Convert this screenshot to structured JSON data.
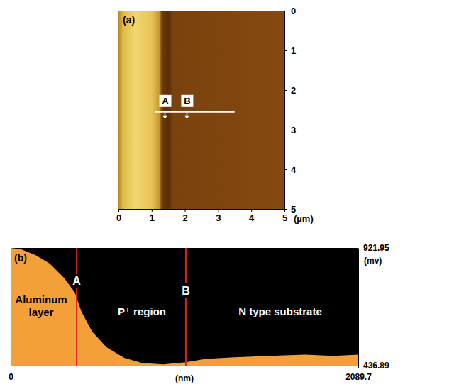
{
  "chart_data": [
    {
      "type": "image",
      "panel": "(a)",
      "x_label": "(µm)",
      "xlim": [
        0,
        5
      ],
      "xticks": [
        0,
        1,
        2,
        3,
        4,
        5
      ],
      "ylim": [
        0,
        5
      ],
      "yticks": [
        0,
        1,
        2,
        3,
        4,
        5
      ],
      "profile_line": {
        "x": [
          1.1,
          3.5
        ],
        "y": 2.55
      },
      "annotations": [
        {
          "text": "A",
          "x": 1.4
        },
        {
          "text": "B",
          "x": 2.06
        }
      ]
    },
    {
      "type": "area",
      "panel": "(b)",
      "x_label": "(nm)",
      "y_label": "(mv)",
      "xlim": [
        0,
        2089.7
      ],
      "xticks": [
        0,
        2089.7
      ],
      "ylim": [
        436.89,
        921.95
      ],
      "yticks": [
        436.89,
        921.95
      ],
      "x": [
        0,
        64,
        149,
        235,
        320,
        384,
        426,
        490,
        576,
        682,
        789,
        917,
        1053,
        1173,
        1343,
        1557,
        1770,
        1940,
        2089.7
      ],
      "values": [
        921.95,
        916,
        893,
        858,
        799,
        741,
        659,
        577,
        513,
        469,
        448,
        442,
        451,
        465,
        471,
        477,
        482,
        477,
        482
      ],
      "color": "#f4a038",
      "annotations": [
        {
          "text": "A",
          "x": 397
        },
        {
          "text": "B",
          "x": 1053
        },
        {
          "text": "Aluminum layer"
        },
        {
          "text": "P⁺ region"
        },
        {
          "text": "N type substrate"
        }
      ]
    }
  ]
}
